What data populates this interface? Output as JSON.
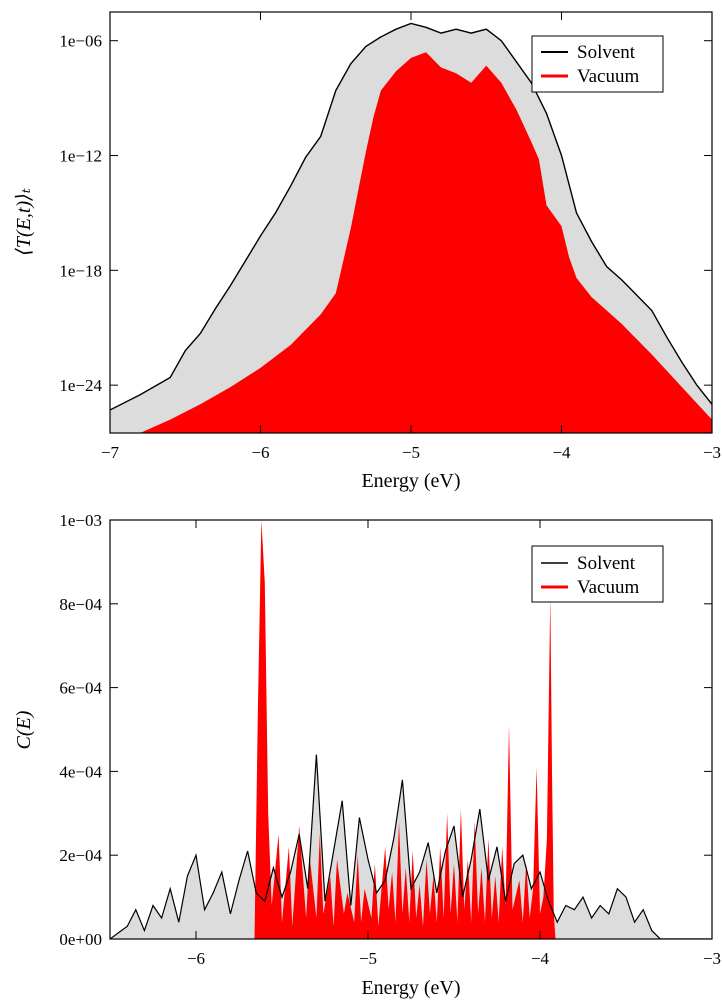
{
  "colors": {
    "solvent_line": "#000000",
    "solvent_fill": "#dcdcdc",
    "vacuum": "#ff0000",
    "frame": "#000000",
    "background": "#ffffff"
  },
  "chart_data": [
    {
      "type": "area",
      "xlabel": "Energy (eV)",
      "ylabel": "⟨T(E,t)⟩ₜ",
      "yscale": "log",
      "xlim": [
        -7,
        -3
      ],
      "ylim_exponent": [
        -26.5,
        -4.5
      ],
      "grid": false,
      "legend_position": "top-right",
      "x_ticks": [
        -7,
        -6,
        -5,
        -4,
        -3
      ],
      "x_tick_labels": [
        "−7",
        "−6",
        "−5",
        "−4",
        "−3"
      ],
      "y_ticks_exponent": [
        -6,
        -12,
        -18,
        -24
      ],
      "y_tick_labels": [
        "1e−06",
        "1e−12",
        "1e−18",
        "1e−24"
      ],
      "series": [
        {
          "name": "Solvent",
          "style": "line-with-grey-fill",
          "x": [
            -7.0,
            -6.8,
            -6.6,
            -6.5,
            -6.4,
            -6.3,
            -6.2,
            -6.1,
            -6.0,
            -5.9,
            -5.8,
            -5.7,
            -5.6,
            -5.5,
            -5.4,
            -5.3,
            -5.2,
            -5.1,
            -5.0,
            -4.9,
            -4.8,
            -4.7,
            -4.6,
            -4.5,
            -4.4,
            -4.3,
            -4.2,
            -4.1,
            -4.0,
            -3.9,
            -3.8,
            -3.7,
            -3.6,
            -3.5,
            -3.4,
            -3.3,
            -3.2,
            -3.1,
            -3.0
          ],
          "y_log10": [
            -25.3,
            -24.5,
            -23.6,
            -22.2,
            -21.3,
            -20.0,
            -18.8,
            -17.5,
            -16.2,
            -15.0,
            -13.6,
            -12.1,
            -11.0,
            -8.6,
            -7.2,
            -6.3,
            -5.8,
            -5.4,
            -5.1,
            -5.3,
            -5.6,
            -5.4,
            -5.6,
            -5.4,
            -6.0,
            -7.1,
            -8.2,
            -9.8,
            -12.0,
            -15.0,
            -16.5,
            -17.8,
            -18.5,
            -19.3,
            -20.1,
            -21.5,
            -22.8,
            -24.0,
            -25.0
          ]
        },
        {
          "name": "Vacuum",
          "style": "red-filled-area",
          "x": [
            -6.8,
            -6.6,
            -6.4,
            -6.2,
            -6.0,
            -5.8,
            -5.6,
            -5.5,
            -5.45,
            -5.4,
            -5.35,
            -5.3,
            -5.25,
            -5.2,
            -5.1,
            -5.0,
            -4.9,
            -4.8,
            -4.7,
            -4.6,
            -4.5,
            -4.4,
            -4.3,
            -4.2,
            -4.15,
            -4.1,
            -4.0,
            -3.95,
            -3.9,
            -3.85,
            -3.8,
            -3.6,
            -3.4,
            -3.2,
            -3.0
          ],
          "y_log10": [
            -26.5,
            -25.8,
            -25.0,
            -24.1,
            -23.1,
            -21.9,
            -20.3,
            -19.2,
            -17.5,
            -15.8,
            -13.8,
            -11.8,
            -10.0,
            -8.6,
            -7.6,
            -6.9,
            -6.6,
            -7.4,
            -7.7,
            -8.2,
            -7.3,
            -8.2,
            -9.6,
            -11.3,
            -12.2,
            -14.6,
            -15.7,
            -17.3,
            -18.4,
            -18.9,
            -19.4,
            -20.8,
            -22.4,
            -24.1,
            -25.8
          ]
        }
      ]
    },
    {
      "type": "area",
      "xlabel": "Energy (eV)",
      "ylabel": "C(E)",
      "xlim": [
        -6.5,
        -3
      ],
      "ylim": [
        0,
        0.001
      ],
      "grid": false,
      "legend_position": "top-right",
      "x_ticks": [
        -6,
        -5,
        -4,
        -3
      ],
      "x_tick_labels": [
        "−6",
        "−5",
        "−4",
        "−3"
      ],
      "y_ticks": [
        0,
        0.0002,
        0.0004,
        0.0006,
        0.0008,
        0.001
      ],
      "y_tick_labels": [
        "0e+00",
        "2e−04",
        "4e−04",
        "6e−04",
        "8e−04",
        "1e−03"
      ],
      "series": [
        {
          "name": "Solvent",
          "style": "line-with-grey-fill",
          "x": [
            -6.5,
            -6.4,
            -6.35,
            -6.3,
            -6.25,
            -6.2,
            -6.15,
            -6.1,
            -6.05,
            -6.0,
            -5.95,
            -5.9,
            -5.85,
            -5.8,
            -5.75,
            -5.7,
            -5.65,
            -5.6,
            -5.55,
            -5.5,
            -5.45,
            -5.4,
            -5.35,
            -5.3,
            -5.25,
            -5.2,
            -5.15,
            -5.1,
            -5.05,
            -5.0,
            -4.95,
            -4.9,
            -4.85,
            -4.8,
            -4.75,
            -4.7,
            -4.65,
            -4.6,
            -4.55,
            -4.5,
            -4.45,
            -4.4,
            -4.35,
            -4.3,
            -4.25,
            -4.2,
            -4.15,
            -4.1,
            -4.05,
            -4.0,
            -3.95,
            -3.9,
            -3.85,
            -3.8,
            -3.75,
            -3.7,
            -3.65,
            -3.6,
            -3.55,
            -3.5,
            -3.45,
            -3.4,
            -3.35,
            -3.3,
            -3.0
          ],
          "y": [
            0.0,
            3e-05,
            7e-05,
            2e-05,
            8e-05,
            5e-05,
            0.00012,
            4e-05,
            0.00015,
            0.0002,
            7e-05,
            0.00011,
            0.00016,
            6e-05,
            0.00014,
            0.00021,
            0.00011,
            9e-05,
            0.00017,
            0.0001,
            0.00016,
            0.00025,
            0.00012,
            0.00044,
            9e-05,
            0.00021,
            0.00033,
            8e-05,
            0.00029,
            0.00019,
            0.00011,
            0.00014,
            0.00024,
            0.00038,
            0.00012,
            0.00016,
            0.00023,
            0.00011,
            0.00021,
            0.00027,
            0.0001,
            0.00019,
            0.00031,
            0.00014,
            0.00022,
            9e-05,
            0.00018,
            0.0002,
            0.00012,
            0.00016,
            9e-05,
            4e-05,
            8e-05,
            7e-05,
            0.0001,
            5e-05,
            8e-05,
            6e-05,
            0.00012,
            0.0001,
            4e-05,
            7e-05,
            2e-05,
            0.0,
            0.0
          ]
        },
        {
          "name": "Vacuum",
          "style": "red-filled-spikes",
          "x": [
            -6.5,
            -5.66,
            -5.64,
            -5.62,
            -5.6,
            -5.58,
            -5.56,
            -5.52,
            -5.5,
            -5.46,
            -5.44,
            -5.4,
            -5.36,
            -5.34,
            -5.3,
            -5.28,
            -5.26,
            -5.22,
            -5.2,
            -5.18,
            -5.14,
            -5.12,
            -5.08,
            -5.06,
            -5.04,
            -5.02,
            -4.98,
            -4.96,
            -4.94,
            -4.9,
            -4.88,
            -4.86,
            -4.84,
            -4.82,
            -4.8,
            -4.78,
            -4.76,
            -4.74,
            -4.72,
            -4.7,
            -4.68,
            -4.66,
            -4.64,
            -4.62,
            -4.6,
            -4.58,
            -4.56,
            -4.54,
            -4.52,
            -4.5,
            -4.48,
            -4.46,
            -4.44,
            -4.42,
            -4.4,
            -4.38,
            -4.36,
            -4.34,
            -4.32,
            -4.3,
            -4.28,
            -4.26,
            -4.24,
            -4.22,
            -4.2,
            -4.18,
            -4.16,
            -4.12,
            -4.1,
            -4.08,
            -4.06,
            -4.04,
            -4.02,
            -4.0,
            -3.98,
            -3.96,
            -3.94,
            -3.93,
            -3.92,
            -3.91,
            -3.0
          ],
          "y": [
            0.0,
            0.0,
            0.00055,
            0.001,
            0.00085,
            0.0003,
            8e-05,
            0.00025,
            4e-05,
            0.00022,
            3e-05,
            0.00027,
            5e-05,
            0.0002,
            5e-05,
            0.00025,
            6e-05,
            0.00015,
            3e-05,
            0.00019,
            6e-05,
            0.00011,
            4e-05,
            0.0002,
            4e-05,
            0.00012,
            5e-05,
            0.00018,
            3e-05,
            0.00022,
            7e-05,
            0.00016,
            4e-05,
            0.00028,
            6e-05,
            0.00017,
            4e-05,
            0.00021,
            5e-05,
            0.00013,
            3e-05,
            0.00019,
            6e-05,
            0.00015,
            4e-05,
            0.00022,
            5e-05,
            0.0003,
            6e-05,
            0.00018,
            4e-05,
            0.00031,
            7e-05,
            0.00019,
            4e-05,
            0.00028,
            6e-05,
            0.00017,
            4e-05,
            0.00024,
            5e-05,
            0.00015,
            4e-05,
            0.00022,
            8e-05,
            0.00051,
            7e-05,
            0.00014,
            4e-05,
            0.00018,
            5e-05,
            0.00012,
            0.00041,
            6e-05,
            0.0001,
            0.00024,
            0.00082,
            0.0004,
            6e-05,
            0.0,
            0.0
          ]
        }
      ]
    }
  ]
}
